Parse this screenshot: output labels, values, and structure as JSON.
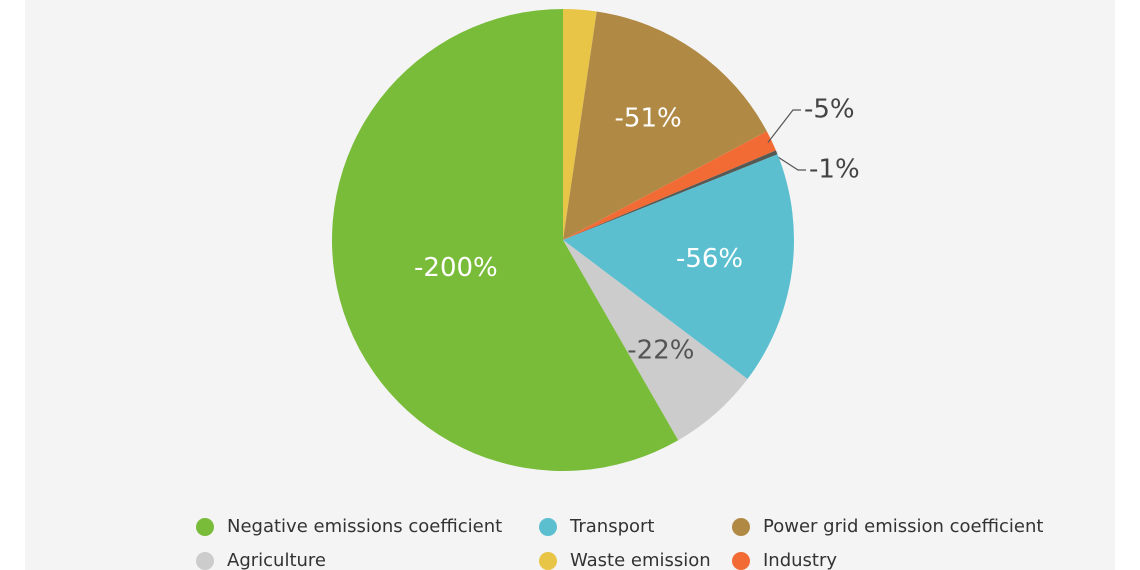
{
  "chart_data": {
    "type": "pie",
    "categories": [
      "Waste emission",
      "Power grid emission coefficient",
      "Industry",
      null,
      "Transport",
      "Agriculture",
      "Negative emissions coefficient"
    ],
    "values": [
      -8,
      -51,
      -5,
      -1,
      -56,
      -22,
      -200
    ],
    "value_labels": [
      null,
      "-51%",
      "-5%",
      "-1%",
      "-56%",
      "-22%",
      "-200%"
    ],
    "colors": [
      "#e8c547",
      "#b08a45",
      "#f26b34",
      "#555a55",
      "#5bbfd0",
      "#cccccc",
      "#79bc3a"
    ],
    "legend": "bottom"
  }
}
